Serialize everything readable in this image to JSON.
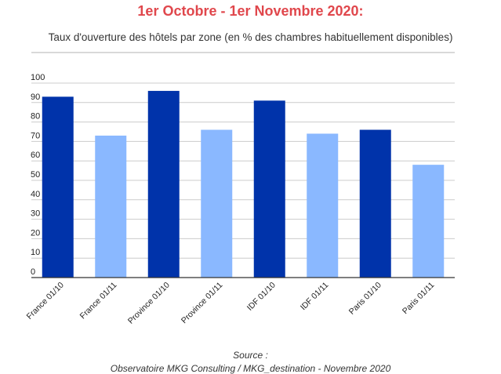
{
  "header": {
    "title": "1er Octobre - 1er Novembre 2020:",
    "title_color": "#e0474c",
    "subtitle": "Taux d'ouverture des hôtels par zone (en % des chambres habituellement disponibles)"
  },
  "chart_data": {
    "type": "bar",
    "categories": [
      "France 01/10",
      "France 01/11",
      "Province 01/10",
      "Province 01/11",
      "IDF 01/10",
      "IDF 01/11",
      "Paris 01/10",
      "Paris 01/11"
    ],
    "values": [
      93,
      73,
      96,
      76,
      91,
      74,
      76,
      58
    ],
    "colors": [
      "#0033aa",
      "#8ab8ff",
      "#0033aa",
      "#8ab8ff",
      "#0033aa",
      "#8ab8ff",
      "#0033aa",
      "#8ab8ff"
    ],
    "title": "",
    "xlabel": "",
    "ylabel": "",
    "ylim": [
      0,
      100
    ],
    "yticks": [
      0,
      10,
      20,
      30,
      40,
      50,
      60,
      70,
      80,
      90,
      100
    ],
    "grid": true
  },
  "footer": {
    "source_label": "Source :",
    "source_text": "Observatoire MKG Consulting / MKG_destination - Novembre 2020"
  }
}
